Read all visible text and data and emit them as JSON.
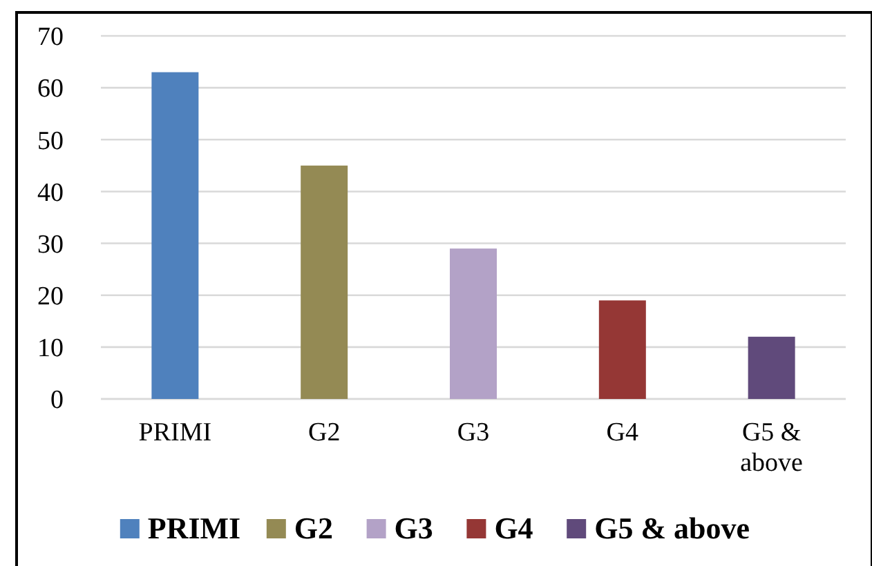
{
  "chart_data": {
    "type": "bar",
    "categories": [
      "PRIMI",
      "G2",
      "G3",
      "G4",
      "G5 & above"
    ],
    "series": [
      {
        "name": "PRIMI",
        "color": "#4f81bd",
        "values": [
          63,
          null,
          null,
          null,
          null
        ]
      },
      {
        "name": "G2",
        "color": "#948a54",
        "values": [
          null,
          45,
          null,
          null,
          null
        ]
      },
      {
        "name": "G3",
        "color": "#b3a2c7",
        "values": [
          null,
          null,
          29,
          null,
          null
        ]
      },
      {
        "name": "G4",
        "color": "#953735",
        "values": [
          null,
          null,
          null,
          19,
          null
        ]
      },
      {
        "name": "G5 & above",
        "color": "#604a7b",
        "values": [
          null,
          null,
          null,
          null,
          12
        ]
      }
    ],
    "ylim": [
      0,
      70
    ],
    "yticks": [
      0,
      10,
      20,
      30,
      40,
      50,
      60,
      70
    ],
    "grid": "y",
    "legend": "bottom"
  }
}
